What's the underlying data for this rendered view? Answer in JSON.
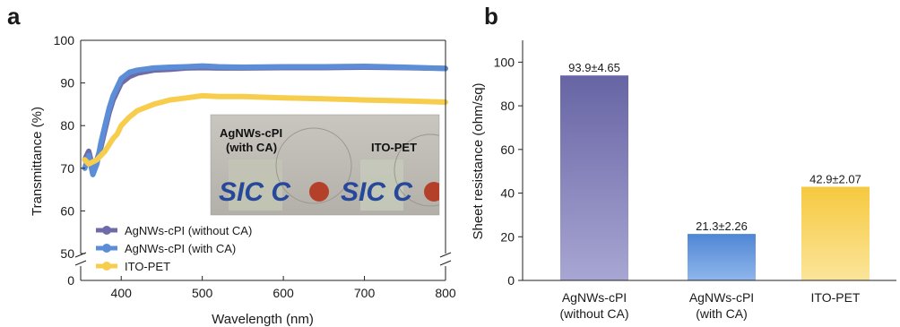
{
  "colors": {
    "purple": "#6e6ba8",
    "blue": "#5b8ed6",
    "yellow": "#f7cd4e"
  },
  "chart_data": [
    {
      "panel": "a",
      "type": "line",
      "xlabel": "Wavelength (nm)",
      "ylabel": "Transmittance (%)",
      "xlim": [
        350,
        800
      ],
      "ylim": [
        0,
        100
      ],
      "axis_break": "y between 0 and 50",
      "x_ticks": [
        "400",
        "500",
        "600",
        "700",
        "800"
      ],
      "y_ticks": [
        "0",
        "50",
        "60",
        "70",
        "80",
        "90",
        "100"
      ],
      "legend_position": "bottom-left",
      "series": [
        {
          "name": "AgNWs-cPI (without CA)",
          "color": "#6e6ba8",
          "x": [
            355,
            360,
            365,
            370,
            375,
            380,
            385,
            390,
            395,
            400,
            410,
            420,
            440,
            460,
            480,
            500,
            520,
            550,
            600,
            650,
            700,
            750,
            800
          ],
          "y": [
            72,
            74,
            70,
            72,
            75,
            79,
            83,
            86,
            88,
            90,
            91.5,
            92.3,
            93,
            93.2,
            93.5,
            93.6,
            93.5,
            93.5,
            93.6,
            93.6,
            93.7,
            93.6,
            93.4
          ]
        },
        {
          "name": "AgNWs-cPI (with CA)",
          "color": "#5b8ed6",
          "x": [
            355,
            360,
            365,
            370,
            375,
            380,
            385,
            390,
            395,
            400,
            410,
            420,
            440,
            460,
            480,
            500,
            520,
            550,
            600,
            650,
            700,
            750,
            800
          ],
          "y": [
            70,
            73,
            68.5,
            71,
            76,
            80,
            84,
            87,
            89,
            91,
            92.5,
            93,
            93.5,
            93.7,
            93.8,
            94,
            93.8,
            93.7,
            93.8,
            93.8,
            93.9,
            93.7,
            93.4
          ]
        },
        {
          "name": "ITO-PET",
          "color": "#f7cd4e",
          "x": [
            355,
            360,
            365,
            370,
            380,
            390,
            395,
            400,
            410,
            420,
            440,
            460,
            480,
            500,
            520,
            550,
            600,
            650,
            700,
            750,
            800
          ],
          "y": [
            72,
            71,
            71.5,
            72,
            74,
            77,
            78,
            80,
            82,
            83.5,
            85,
            86,
            86.5,
            87,
            86.8,
            86.8,
            86.5,
            86.3,
            86,
            85.8,
            85.5
          ]
        }
      ],
      "inset": {
        "label_left": "AgNWs-cPI\n(with CA)",
        "label_right": "ITO-PET",
        "logo_text": "SIC C"
      }
    },
    {
      "panel": "b",
      "type": "bar",
      "ylabel": "Sheet resistance (ohm/sq)",
      "ylim": [
        0,
        110
      ],
      "y_ticks": [
        "0",
        "20",
        "40",
        "60",
        "80",
        "100"
      ],
      "categories": [
        "AgNWs-cPI\n(without CA)",
        "AgNWs-cPI\n(with CA)",
        "ITO-PET"
      ],
      "values": [
        93.9,
        21.3,
        42.9
      ],
      "labels": [
        "93.9±4.65",
        "21.3±2.26",
        "42.9±2.07"
      ],
      "colors": [
        "#6e6ba8",
        "#5b8ed6",
        "#f7cd4e"
      ]
    }
  ]
}
